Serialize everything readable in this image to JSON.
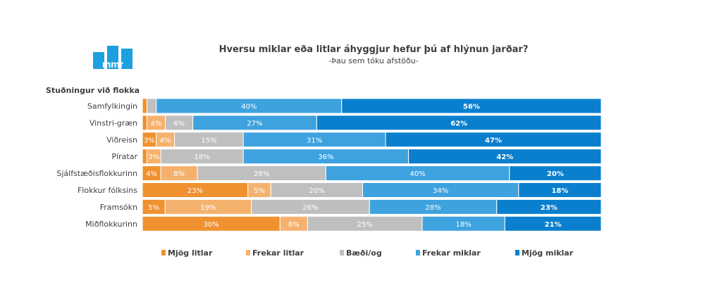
{
  "title": "Hversu miklar eða litlar áhyggjur hefur þú af hlýnun jarðar?",
  "subtitle": "-Þau sem tóku afstöðu-",
  "logo_text": "mmr",
  "colors": {
    "bg": "#ffffff",
    "text": "#404040",
    "logo": "#1e9fe0"
  },
  "chart_data": {
    "type": "bar",
    "orientation": "horizontal",
    "stacked": true,
    "normalized": true,
    "ylabel": "Stuðningur við flokka",
    "categories": [
      "Samfylkingin",
      "Vinstri-græn",
      "Viðreisn",
      "Píratar",
      "Sjálfstæðisflokkurinn",
      "Flokkur fólksins",
      "Framsókn",
      "Miðflokkurinn"
    ],
    "series": [
      {
        "name": "Mjög litlar",
        "color": "#f0912f",
        "values": [
          1,
          1,
          3,
          1,
          4,
          23,
          5,
          30
        ]
      },
      {
        "name": "Frekar litlar",
        "color": "#f5b26e",
        "values": [
          0,
          4,
          4,
          3,
          8,
          5,
          19,
          6
        ]
      },
      {
        "name": "Bæði/og",
        "color": "#bfbfbf",
        "values": [
          2,
          6,
          15,
          18,
          28,
          20,
          26,
          25
        ]
      },
      {
        "name": "Frekar miklar",
        "color": "#3ea2df",
        "values": [
          40,
          27,
          31,
          36,
          40,
          34,
          28,
          18
        ]
      },
      {
        "name": "Mjög miklar",
        "color": "#0a7fce",
        "values": [
          56,
          62,
          47,
          42,
          20,
          18,
          23,
          21
        ]
      }
    ],
    "data_labels": [
      [
        "",
        "",
        "",
        "40%",
        "56%"
      ],
      [
        "",
        "4%",
        "6%",
        "27%",
        "62%"
      ],
      [
        "3%",
        "4%",
        "15%",
        "31%",
        "47%"
      ],
      [
        "",
        "3%",
        "18%",
        "36%",
        "42%"
      ],
      [
        "4%",
        "8%",
        "28%",
        "40%",
        "20%"
      ],
      [
        "23%",
        "5%",
        "20%",
        "34%",
        "18%"
      ],
      [
        "5%",
        "19%",
        "26%",
        "28%",
        "23%"
      ],
      [
        "30%",
        "6%",
        "25%",
        "18%",
        "21%"
      ]
    ],
    "legend_position": "bottom",
    "grid": false
  }
}
